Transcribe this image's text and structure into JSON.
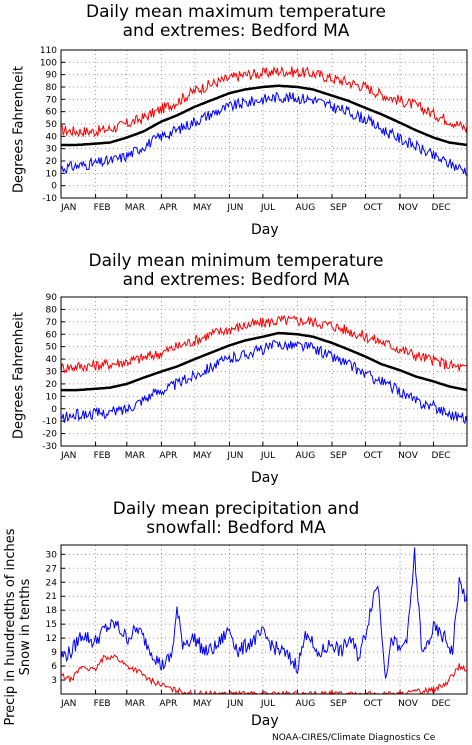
{
  "chart_data": [
    {
      "type": "line",
      "title_line1": "Daily mean maximum temperature",
      "title_line2": "and extremes: Bedford MA",
      "xlabel": "Day",
      "ylabel": "Degrees Fahrenheit",
      "x_ticks": [
        "JAN",
        "FEB",
        "MAR",
        "APR",
        "MAY",
        "JUN",
        "JUL",
        "AUG",
        "SEP",
        "OCT",
        "NOV",
        "DEC"
      ],
      "ylim": [
        -10,
        110
      ],
      "y_ticks": [
        -10,
        0,
        10,
        20,
        30,
        40,
        50,
        60,
        70,
        80,
        90,
        100,
        110
      ],
      "grid": true,
      "series": [
        {
          "color": "#ff0000",
          "x": [
            1,
            15,
            31,
            45,
            60,
            75,
            91,
            105,
            121,
            135,
            152,
            166,
            182,
            196,
            213,
            227,
            244,
            258,
            274,
            288,
            305,
            319,
            335,
            349,
            365
          ],
          "y": [
            45,
            44,
            44,
            46,
            50,
            55,
            62,
            68,
            77,
            82,
            87,
            90,
            91,
            93,
            92,
            91,
            87,
            84,
            80,
            74,
            69,
            65,
            58,
            53,
            46
          ]
        },
        {
          "color": "#000000",
          "x": [
            1,
            15,
            31,
            45,
            60,
            75,
            91,
            105,
            121,
            135,
            152,
            166,
            182,
            196,
            213,
            227,
            244,
            258,
            274,
            288,
            305,
            319,
            335,
            349,
            365
          ],
          "y": [
            33,
            33,
            34,
            35,
            39,
            44,
            52,
            57,
            64,
            69,
            75,
            78,
            80,
            81,
            80,
            78,
            73,
            69,
            63,
            58,
            51,
            45,
            39,
            35,
            33
          ]
        },
        {
          "color": "#0000ff",
          "x": [
            1,
            15,
            31,
            45,
            60,
            75,
            91,
            105,
            121,
            135,
            152,
            166,
            182,
            196,
            213,
            227,
            244,
            258,
            274,
            288,
            305,
            319,
            335,
            349,
            365
          ],
          "y": [
            14,
            16,
            18,
            20,
            24,
            32,
            40,
            45,
            52,
            58,
            64,
            67,
            70,
            72,
            71,
            70,
            64,
            60,
            54,
            46,
            38,
            32,
            24,
            18,
            12
          ]
        }
      ]
    },
    {
      "type": "line",
      "title_line1": "Daily mean minimum temperature",
      "title_line2": "and extremes: Bedford MA",
      "xlabel": "Day",
      "ylabel": "Degrees Fahrenheit",
      "x_ticks": [
        "JAN",
        "FEB",
        "MAR",
        "APR",
        "MAY",
        "JUN",
        "JUL",
        "AUG",
        "SEP",
        "OCT",
        "NOV",
        "DEC"
      ],
      "ylim": [
        -30,
        90
      ],
      "y_ticks": [
        -30,
        -20,
        -10,
        0,
        10,
        20,
        30,
        40,
        50,
        60,
        70,
        80,
        90
      ],
      "grid": true,
      "series": [
        {
          "color": "#ff0000",
          "x": [
            1,
            15,
            31,
            45,
            60,
            75,
            91,
            105,
            121,
            135,
            152,
            166,
            182,
            196,
            213,
            227,
            244,
            258,
            274,
            288,
            305,
            319,
            335,
            349,
            365
          ],
          "y": [
            33,
            34,
            35,
            36,
            38,
            41,
            45,
            50,
            55,
            60,
            64,
            67,
            69,
            71,
            71,
            70,
            67,
            63,
            58,
            54,
            48,
            43,
            39,
            35,
            32
          ]
        },
        {
          "color": "#000000",
          "x": [
            1,
            15,
            31,
            45,
            60,
            75,
            91,
            105,
            121,
            135,
            152,
            166,
            182,
            196,
            213,
            227,
            244,
            258,
            274,
            288,
            305,
            319,
            335,
            349,
            365
          ],
          "y": [
            15,
            15,
            16,
            17,
            20,
            25,
            30,
            34,
            40,
            45,
            51,
            55,
            58,
            61,
            60,
            58,
            53,
            48,
            42,
            36,
            31,
            26,
            22,
            18,
            15
          ]
        },
        {
          "color": "#0000ff",
          "x": [
            1,
            15,
            31,
            45,
            60,
            75,
            91,
            105,
            121,
            135,
            152,
            166,
            182,
            196,
            213,
            227,
            244,
            258,
            274,
            288,
            305,
            319,
            335,
            349,
            365
          ],
          "y": [
            -8,
            -5,
            -4,
            -3,
            0,
            8,
            15,
            20,
            27,
            34,
            40,
            44,
            48,
            52,
            51,
            49,
            42,
            36,
            28,
            22,
            14,
            6,
            2,
            -4,
            -8
          ]
        }
      ]
    },
    {
      "type": "line",
      "title_line1": "Daily mean precipitation and",
      "title_line2": "snowfall: Bedford MA",
      "xlabel": "Day",
      "ylabel_line1": "Precip in hundredths of inches",
      "ylabel_line2": "Snow in tenths",
      "x_ticks": [
        "JAN",
        "FEB",
        "MAR",
        "APR",
        "MAY",
        "JUN",
        "JUL",
        "AUG",
        "SEP",
        "OCT",
        "NOV",
        "DEC"
      ],
      "ylim": [
        0,
        32
      ],
      "y_ticks": [
        3,
        6,
        9,
        12,
        15,
        18,
        21,
        24,
        27,
        30
      ],
      "grid": true,
      "series": [
        {
          "color": "#0000ff",
          "x": [
            1,
            10,
            20,
            31,
            40,
            50,
            60,
            70,
            80,
            91,
            100,
            105,
            110,
            121,
            130,
            140,
            152,
            160,
            170,
            182,
            192,
            200,
            213,
            222,
            230,
            244,
            252,
            260,
            268,
            274,
            280,
            285,
            292,
            298,
            305,
            312,
            318,
            325,
            335,
            345,
            352,
            358,
            365
          ],
          "y": [
            8,
            9,
            13,
            11,
            14,
            15,
            12,
            14,
            10,
            6,
            8,
            18,
            11,
            12,
            9,
            10,
            14,
            9,
            11,
            13,
            10,
            9,
            6,
            14,
            8,
            11,
            9,
            12,
            8,
            13,
            20,
            24,
            4,
            12,
            9,
            13,
            30,
            8,
            14,
            12,
            9,
            24,
            20
          ]
        },
        {
          "color": "#ff0000",
          "x": [
            1,
            10,
            20,
            31,
            40,
            50,
            60,
            70,
            80,
            91,
            100,
            110,
            121,
            152,
            182,
            213,
            244,
            274,
            305,
            320,
            335,
            345,
            352,
            358,
            365
          ],
          "y": [
            4,
            3,
            6,
            5,
            8,
            8,
            6,
            5,
            3,
            2,
            1,
            0.5,
            0,
            0,
            0,
            0,
            0,
            0,
            0,
            0.5,
            1,
            2,
            4,
            6,
            5
          ]
        }
      ]
    }
  ],
  "credit": "NOAA-CIRES/Climate Diagnostics Ce"
}
